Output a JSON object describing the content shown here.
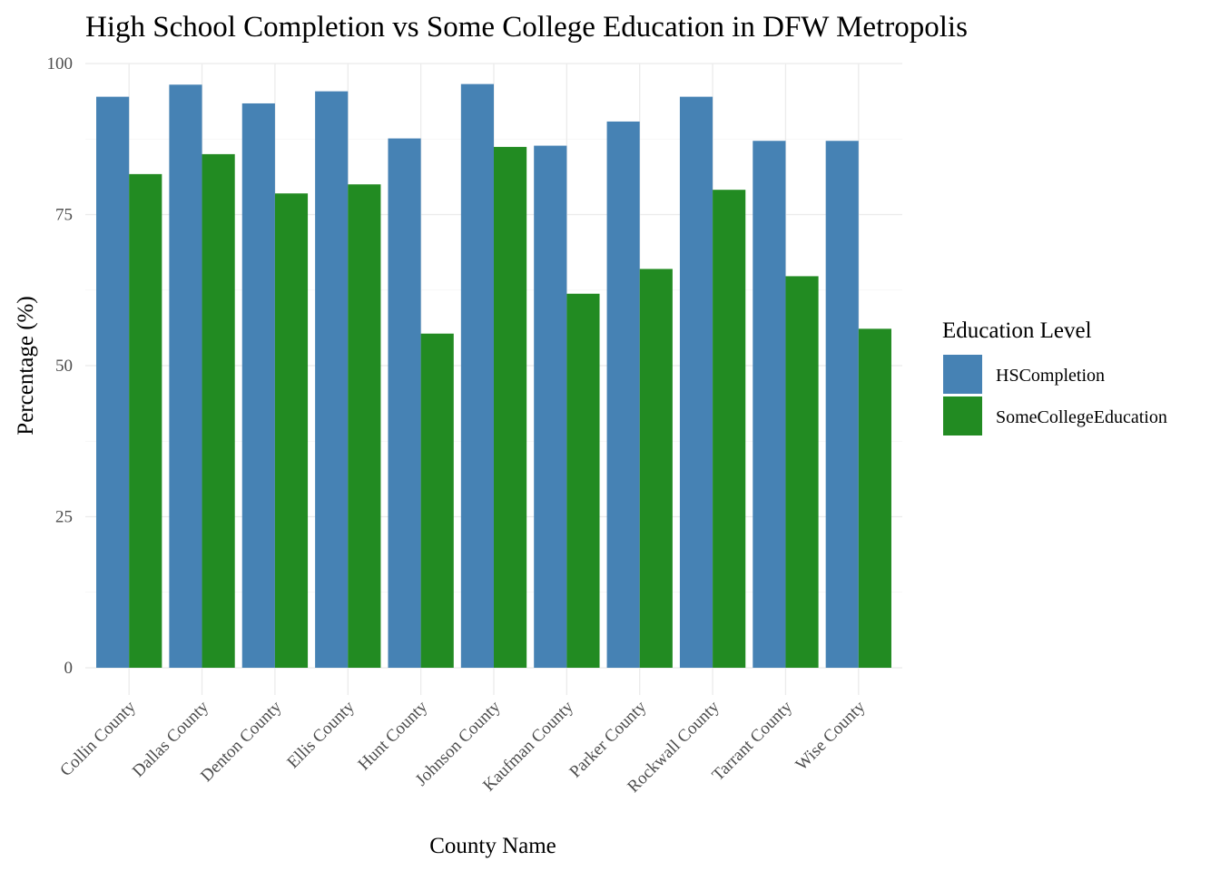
{
  "chart_data": {
    "type": "bar",
    "title": "High School Completion vs Some College Education in DFW Metropolis",
    "xlabel": "County Name",
    "ylabel": "Percentage (%)",
    "ylim": [
      0,
      100
    ],
    "yticks": [
      0,
      25,
      50,
      75,
      100
    ],
    "grid": true,
    "legend_position": "right",
    "legend_title": "Education Level",
    "categories": [
      "Collin County",
      "Dallas County",
      "Denton County",
      "Ellis County",
      "Hunt County",
      "Johnson County",
      "Kaufman County",
      "Parker County",
      "Rockwall County",
      "Tarrant County",
      "Wise County"
    ],
    "series": [
      {
        "name": "HSCompletion",
        "color": "#4682b4",
        "values": [
          94.5,
          96.5,
          93.4,
          95.4,
          87.6,
          96.6,
          86.4,
          90.4,
          94.5,
          87.2,
          87.2
        ]
      },
      {
        "name": "SomeCollegeEducation",
        "color": "#228b22",
        "values": [
          81.7,
          85.0,
          78.5,
          80.0,
          55.3,
          86.2,
          61.9,
          66.0,
          79.1,
          64.8,
          56.1
        ]
      }
    ]
  }
}
